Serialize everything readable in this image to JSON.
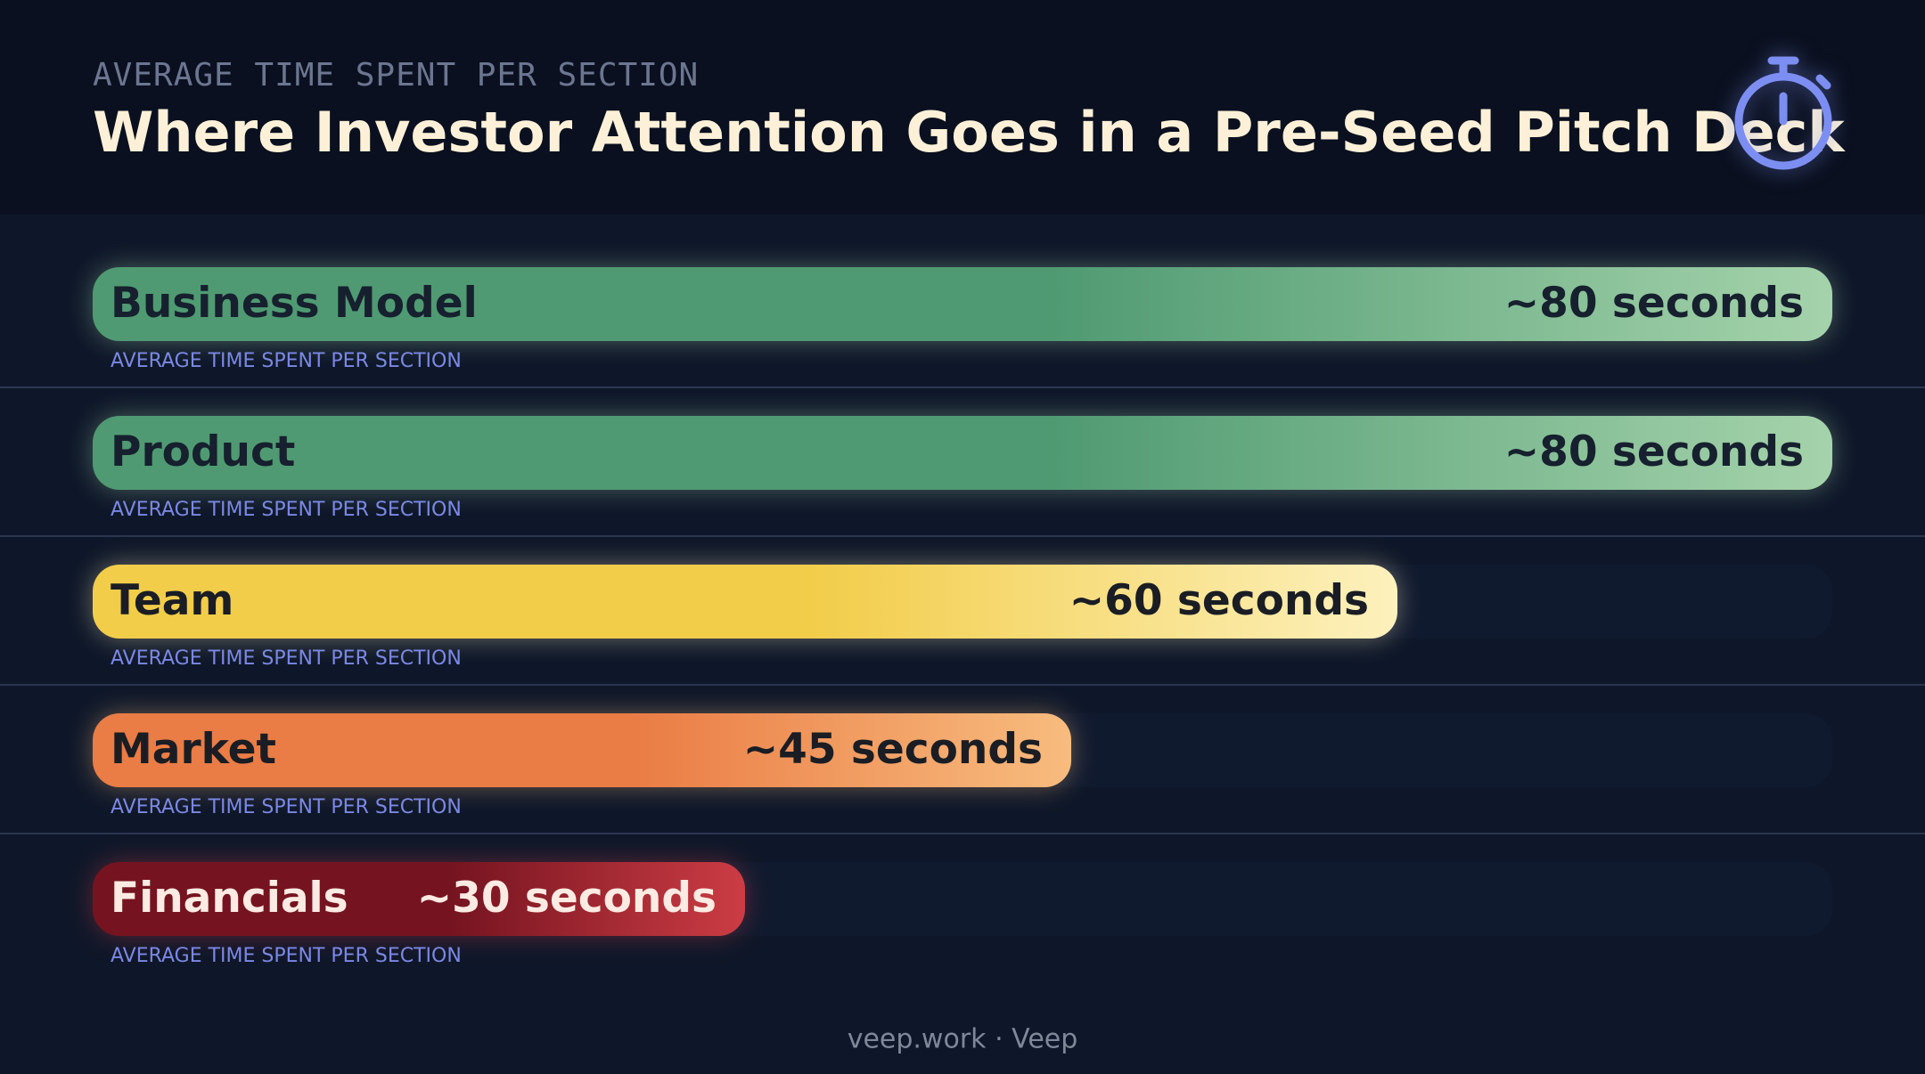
{
  "chart_data": {
    "type": "bar",
    "orientation": "horizontal",
    "subtitle": "AVERAGE TIME SPENT PER SECTION",
    "title": "Where Investor Attention Goes in a Pre-Seed Pitch Deck",
    "categories": [
      "Business Model",
      "Product",
      "Team",
      "Market",
      "Financials"
    ],
    "values": [
      80,
      80,
      60,
      45,
      30
    ],
    "value_labels": [
      "~80 seconds",
      "~80 seconds",
      "~60 seconds",
      "~45 seconds",
      "~30 seconds"
    ],
    "captions": [
      "AVERAGE TIME SPENT PER SECTION",
      "AVERAGE TIME SPENT PER SECTION",
      "AVERAGE TIME SPENT PER SECTION",
      "AVERAGE TIME SPENT PER SECTION",
      "AVERAGE TIME SPENT PER SECTION"
    ],
    "colors": [
      [
        "#4f9a72",
        "#a5d3ab"
      ],
      [
        "#4f9a72",
        "#a5d3ab"
      ],
      [
        "#f2cd4a",
        "#fdf1bd"
      ],
      [
        "#ea7c45",
        "#f8bc7e"
      ],
      [
        "#751420",
        "#cc3c44"
      ]
    ],
    "text_colors": [
      "#16202e",
      "#16202e",
      "#1a1d24",
      "#1a1d24",
      "#fcebe3"
    ],
    "footer": "veep.work · Veep"
  }
}
